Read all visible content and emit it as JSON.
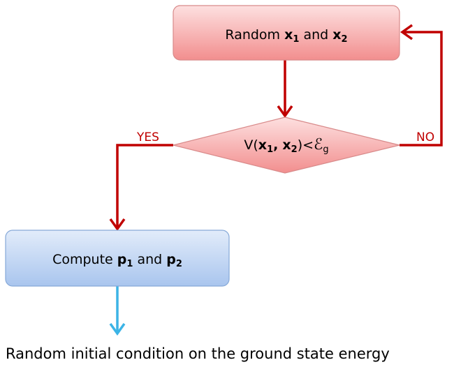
{
  "nodes": [
    {
      "label": [
        "Random",
        "x",
        "1",
        "and",
        "x",
        "2"
      ]
    },
    {
      "label": [
        "V(",
        "x",
        "1",
        ",",
        "x",
        "2",
        ")<",
        "ℰ",
        "g"
      ]
    },
    {
      "label": [
        "Compute",
        "p",
        "1",
        "and",
        "p",
        "2"
      ]
    }
  ],
  "edges": [
    {
      "label": "YES"
    },
    {
      "label": "NO"
    }
  ],
  "caption": "Random initial condition on the ground state energy"
}
